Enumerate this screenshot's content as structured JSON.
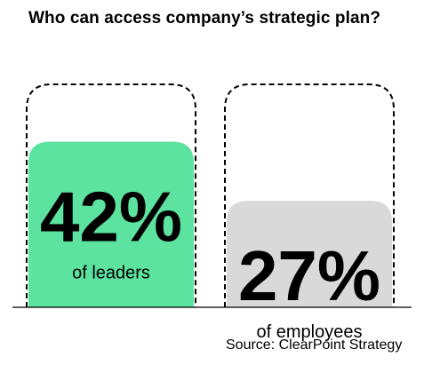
{
  "chart_data": {
    "type": "bar",
    "title": "Who can access company’s strategic plan?",
    "categories": [
      "leaders",
      "employees"
    ],
    "values": [
      42,
      27
    ],
    "value_labels": [
      "42%",
      "27%"
    ],
    "sub_labels": [
      "of leaders",
      "of employees"
    ],
    "ylim": [
      0,
      100
    ],
    "colors": [
      "#5ce3a0",
      "#d9d9d9"
    ],
    "outline": "dashed",
    "grid": false,
    "legend": "none",
    "source": "Source: ClearPoint Strategy"
  }
}
